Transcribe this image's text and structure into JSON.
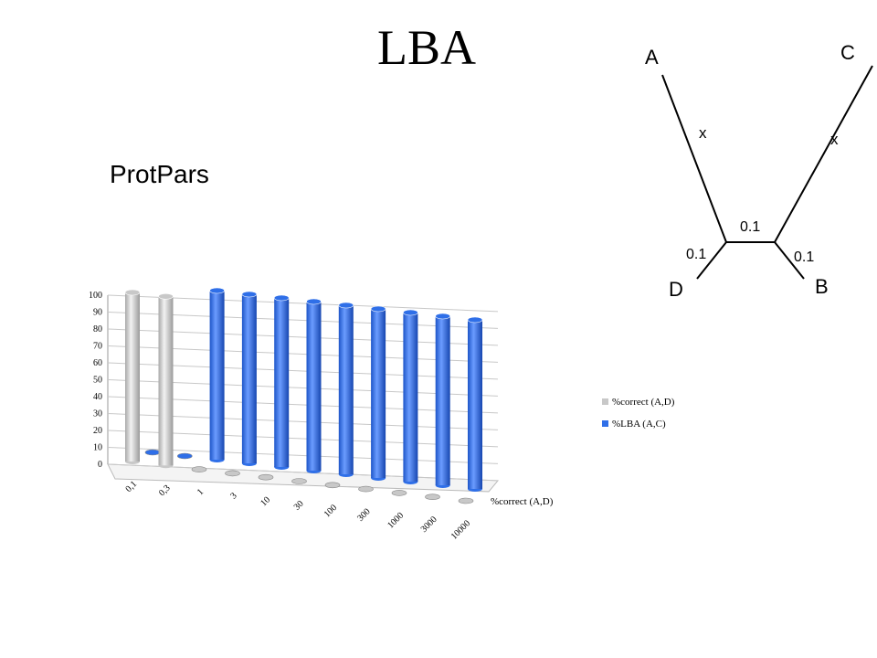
{
  "chart_data": {
    "type": "bar3d",
    "title": "LBA",
    "subtitle": "ProtPars",
    "categories": [
      "0,1",
      "0,3",
      "1",
      "3",
      "10",
      "30",
      "100",
      "300",
      "1000",
      "3000",
      "10000"
    ],
    "series": [
      {
        "name": "%correct (A,D)",
        "color": "#c8c8c8",
        "values": [
          100,
          100,
          0,
          0,
          0,
          0,
          0,
          0,
          0,
          0,
          0
        ]
      },
      {
        "name": "%LBA (A,C)",
        "color": "#2f6fe8",
        "values": [
          0,
          0,
          100,
          100,
          100,
          100,
          100,
          100,
          100,
          100,
          100
        ]
      }
    ],
    "depth_label": "%correct (A,D)",
    "ylim": [
      0,
      100
    ],
    "yticks": [
      0,
      10,
      20,
      30,
      40,
      50,
      60,
      70,
      80,
      90,
      100
    ],
    "grid": true,
    "legend": "right"
  },
  "diagram": {
    "leaves": [
      "A",
      "C",
      "D",
      "B"
    ],
    "branch_labels": [
      "x",
      "x",
      "0.1",
      "0.1",
      "0.1"
    ]
  }
}
